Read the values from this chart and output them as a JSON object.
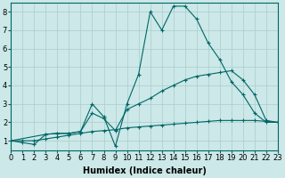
{
  "background_color": "#cce8e8",
  "grid_color": "#aacccc",
  "line_color": "#006666",
  "series1_x": [
    0,
    1,
    2,
    3,
    4,
    5,
    6,
    7,
    8,
    9,
    10,
    11,
    12,
    13,
    14,
    15,
    16,
    17,
    18,
    19,
    20,
    21,
    22,
    23
  ],
  "series1_y": [
    1.0,
    0.9,
    0.8,
    1.35,
    1.4,
    1.4,
    1.5,
    3.0,
    2.3,
    0.7,
    3.0,
    4.6,
    8.0,
    7.0,
    8.3,
    8.3,
    7.6,
    6.3,
    5.4,
    4.2,
    3.5,
    2.5,
    2.0,
    2.0
  ],
  "series2_x": [
    0,
    3,
    4,
    5,
    6,
    7,
    8,
    9,
    10,
    11,
    12,
    13,
    14,
    15,
    16,
    17,
    18,
    19,
    20,
    21,
    22,
    23
  ],
  "series2_y": [
    1.0,
    1.35,
    1.4,
    1.4,
    1.5,
    2.5,
    2.2,
    1.55,
    2.7,
    3.0,
    3.3,
    3.7,
    4.0,
    4.3,
    4.5,
    4.6,
    4.7,
    4.8,
    4.3,
    3.5,
    2.1,
    2.0
  ],
  "series3_x": [
    0,
    1,
    2,
    3,
    4,
    5,
    6,
    7,
    8,
    9,
    10,
    11,
    12,
    13,
    14,
    15,
    16,
    17,
    18,
    19,
    20,
    21,
    22,
    23
  ],
  "series3_y": [
    1.0,
    1.0,
    1.0,
    1.1,
    1.2,
    1.3,
    1.4,
    1.5,
    1.55,
    1.6,
    1.7,
    1.75,
    1.8,
    1.85,
    1.9,
    1.95,
    2.0,
    2.05,
    2.1,
    2.1,
    2.1,
    2.1,
    2.05,
    2.0
  ],
  "xlim": [
    0,
    23
  ],
  "ylim": [
    0.5,
    8.5
  ],
  "yticks": [
    1,
    2,
    3,
    4,
    5,
    6,
    7,
    8
  ],
  "xticks": [
    0,
    1,
    2,
    3,
    4,
    5,
    6,
    7,
    8,
    9,
    10,
    11,
    12,
    13,
    14,
    15,
    16,
    17,
    18,
    19,
    20,
    21,
    22,
    23
  ],
  "xlabel": "Humidex (Indice chaleur)",
  "xlabel_fontsize": 7,
  "tick_fontsize": 6
}
